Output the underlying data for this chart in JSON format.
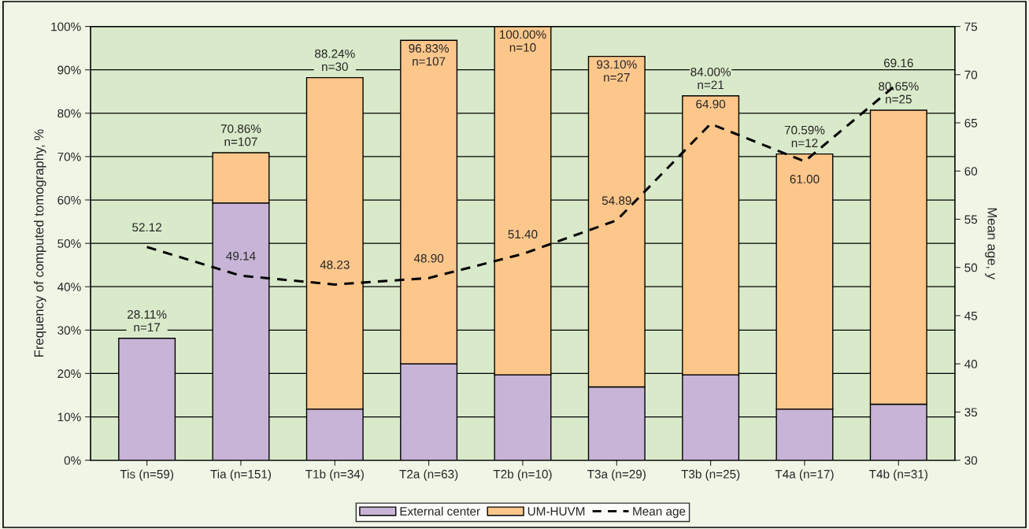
{
  "chart_data": {
    "type": "bar",
    "stacked": true,
    "ylabel": "Frequency of computed tomography, %",
    "y2label": "Mean age, y",
    "categories": [
      "Tis (n=59)",
      "Tia (n=151)",
      "T1b (n=34)",
      "T2a (n=63)",
      "T2b (n=10)",
      "T3a (n=29)",
      "T3b (n=25)",
      "T4a (n=17)",
      "T4b (n=31)"
    ],
    "series": [
      {
        "name": "External center",
        "color": "#c8b4d6",
        "values": [
          28.1,
          59.3,
          11.8,
          22.2,
          19.7,
          16.9,
          19.7,
          11.8,
          12.9
        ]
      },
      {
        "name": "UM-HUVM",
        "color": "#fdc78b",
        "values": [
          null,
          11.6,
          76.4,
          74.6,
          80.3,
          76.2,
          64.3,
          58.8,
          67.8
        ]
      },
      {
        "name": "Mean age",
        "type": "line",
        "axis": "y2",
        "color": "#000000",
        "line_style": "dashed",
        "values": [
          52.12,
          49.14,
          48.23,
          48.9,
          51.4,
          54.89,
          64.9,
          61.0,
          69.16
        ],
        "value_labels": [
          "52.12",
          "49.14",
          "48.23",
          "48.90",
          "51.40",
          "54.89",
          "64.90",
          "61.00",
          "69.16"
        ]
      }
    ],
    "totals": [
      "28.11%\nn=17",
      "70.86%\nn=107",
      "88.24%\nn=30",
      "96.83%\nn=107",
      "100.00%\nn=10",
      "93.10%\nn=27",
      "84.00%\nn=21",
      "70.59%\nn=12",
      "80.65%\nn=25"
    ],
    "ylim": [
      0,
      100
    ],
    "yticks": [
      {
        "value": 0,
        "label": "0%"
      },
      {
        "value": 10,
        "label": "10%"
      },
      {
        "value": 20,
        "label": "20%"
      },
      {
        "value": 30,
        "label": "30%"
      },
      {
        "value": 40,
        "label": "40%"
      },
      {
        "value": 50,
        "label": "50%"
      },
      {
        "value": 60,
        "label": "60%"
      },
      {
        "value": 70,
        "label": "70%"
      },
      {
        "value": 80,
        "label": "80%"
      },
      {
        "value": 90,
        "label": "90%"
      },
      {
        "value": 100,
        "label": "100%"
      }
    ],
    "y2lim": [
      30,
      75
    ],
    "y2ticks": [
      30,
      35,
      40,
      45,
      50,
      55,
      60,
      65,
      70,
      75
    ],
    "grid": "y",
    "legend": "bottom"
  }
}
